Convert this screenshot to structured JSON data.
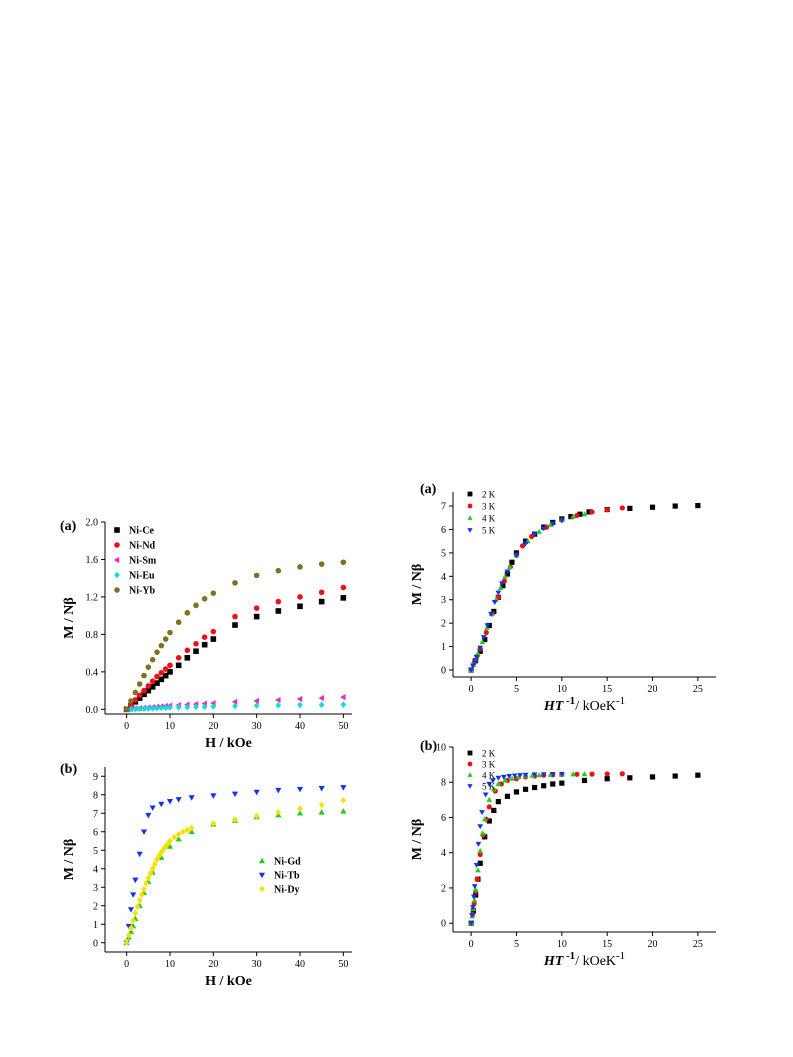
{
  "chart_data": [
    {
      "type": "scatter",
      "panel_label": "(a)",
      "xlabel": "H / kOe",
      "ylabel": "M / Nβ",
      "xlim": [
        -5,
        52
      ],
      "ylim": [
        -0.05,
        2.0
      ],
      "xticks": [
        0,
        10,
        20,
        30,
        40,
        50
      ],
      "yticks": [
        0.0,
        0.4,
        0.8,
        1.2,
        1.6,
        2.0
      ],
      "ytick_labels": [
        "0.0",
        "0.4",
        "0.8",
        "1.2",
        "1.6",
        "2.0"
      ],
      "legend_position": "top-left",
      "series": [
        {
          "name": "Ni-Ce",
          "marker": "square",
          "color": "#000000",
          "x": [
            0,
            1,
            2,
            3,
            4,
            5,
            6,
            7,
            8,
            9,
            10,
            12,
            14,
            16,
            18,
            20,
            25,
            30,
            35,
            40,
            45,
            50
          ],
          "y": [
            0,
            0.04,
            0.08,
            0.12,
            0.16,
            0.2,
            0.24,
            0.28,
            0.32,
            0.36,
            0.4,
            0.47,
            0.55,
            0.62,
            0.69,
            0.75,
            0.9,
            0.99,
            1.05,
            1.1,
            1.15,
            1.19
          ]
        },
        {
          "name": "Ni-Nd",
          "marker": "circle",
          "color": "#ee1111",
          "x": [
            0,
            1,
            2,
            3,
            4,
            5,
            6,
            7,
            8,
            9,
            10,
            12,
            14,
            16,
            18,
            20,
            25,
            30,
            35,
            40,
            45,
            50
          ],
          "y": [
            0,
            0.05,
            0.1,
            0.15,
            0.2,
            0.25,
            0.3,
            0.35,
            0.39,
            0.43,
            0.47,
            0.55,
            0.63,
            0.7,
            0.77,
            0.83,
            0.99,
            1.08,
            1.15,
            1.2,
            1.25,
            1.3
          ]
        },
        {
          "name": "Ni-Sm",
          "marker": "triangle-left",
          "color": "#ee22cc",
          "x": [
            0,
            1,
            2,
            3,
            4,
            5,
            6,
            7,
            8,
            9,
            10,
            12,
            14,
            16,
            18,
            20,
            25,
            30,
            35,
            40,
            45,
            50
          ],
          "y": [
            0,
            0.004,
            0.008,
            0.012,
            0.016,
            0.02,
            0.024,
            0.028,
            0.032,
            0.036,
            0.04,
            0.045,
            0.05,
            0.055,
            0.06,
            0.065,
            0.08,
            0.09,
            0.1,
            0.11,
            0.12,
            0.13
          ]
        },
        {
          "name": "Ni-Eu",
          "marker": "diamond",
          "color": "#11dddd",
          "x": [
            0,
            1,
            2,
            3,
            4,
            5,
            6,
            7,
            8,
            9,
            10,
            12,
            14,
            16,
            18,
            20,
            25,
            30,
            35,
            40,
            45,
            50
          ],
          "y": [
            0,
            0.002,
            0.004,
            0.006,
            0.008,
            0.01,
            0.012,
            0.014,
            0.016,
            0.018,
            0.02,
            0.022,
            0.024,
            0.026,
            0.028,
            0.03,
            0.035,
            0.04,
            0.043,
            0.046,
            0.048,
            0.05
          ]
        },
        {
          "name": "Ni-Yb",
          "marker": "circle",
          "color": "#807020",
          "x": [
            0,
            1,
            2,
            3,
            4,
            5,
            6,
            7,
            8,
            9,
            10,
            12,
            14,
            16,
            18,
            20,
            25,
            30,
            35,
            40,
            45,
            50
          ],
          "y": [
            0,
            0.09,
            0.18,
            0.27,
            0.36,
            0.45,
            0.53,
            0.61,
            0.68,
            0.75,
            0.82,
            0.93,
            1.03,
            1.11,
            1.18,
            1.24,
            1.35,
            1.43,
            1.48,
            1.52,
            1.55,
            1.57
          ]
        }
      ]
    },
    {
      "type": "scatter",
      "panel_label": "(b)",
      "xlabel": "H / kOe",
      "ylabel": "M / Nβ",
      "xlim": [
        -5,
        52
      ],
      "ylim": [
        -0.5,
        9.5
      ],
      "xticks": [
        0,
        10,
        20,
        30,
        40,
        50
      ],
      "yticks": [
        0,
        1,
        2,
        3,
        4,
        5,
        6,
        7,
        8,
        9
      ],
      "ytick_labels": [
        "0",
        "1",
        "2",
        "3",
        "4",
        "5",
        "6",
        "7",
        "8",
        "9"
      ],
      "legend_position": "center-right",
      "series": [
        {
          "name": "Ni-Gd",
          "marker": "triangle-up",
          "color": "#22cc22",
          "x": [
            0,
            0.5,
            1,
            1.5,
            2,
            3,
            4,
            5,
            6,
            8,
            10,
            12,
            15,
            20,
            25,
            30,
            35,
            40,
            45,
            50
          ],
          "y": [
            0,
            0.3,
            0.6,
            0.9,
            1.3,
            2.0,
            2.7,
            3.3,
            3.8,
            4.6,
            5.2,
            5.6,
            6.0,
            6.4,
            6.6,
            6.8,
            6.9,
            7.0,
            7.05,
            7.1
          ]
        },
        {
          "name": "Ni-Tb",
          "marker": "triangle-down",
          "color": "#1133ee",
          "x": [
            0,
            0.5,
            1,
            1.5,
            2,
            3,
            4,
            5,
            6,
            8,
            10,
            12,
            15,
            20,
            25,
            30,
            35,
            40,
            45,
            50
          ],
          "y": [
            0,
            0.9,
            1.8,
            2.6,
            3.4,
            4.8,
            6.0,
            6.9,
            7.3,
            7.5,
            7.65,
            7.75,
            7.85,
            7.95,
            8.05,
            8.15,
            8.25,
            8.3,
            8.35,
            8.4
          ]
        },
        {
          "name": "Ni-Dy",
          "marker": "diamond",
          "color": "#f5e000",
          "x": [
            0,
            0.5,
            1,
            1.5,
            2,
            2.5,
            3,
            3.5,
            4,
            4.5,
            5,
            5.5,
            6,
            6.5,
            7,
            7.5,
            8,
            8.5,
            9,
            9.5,
            10,
            11,
            12,
            13,
            14,
            15,
            20,
            25,
            30,
            35,
            40,
            45,
            50
          ],
          "y": [
            0,
            0.4,
            0.8,
            1.2,
            1.6,
            1.95,
            2.3,
            2.6,
            2.9,
            3.2,
            3.5,
            3.75,
            4.0,
            4.25,
            4.5,
            4.7,
            4.9,
            5.05,
            5.2,
            5.35,
            5.5,
            5.7,
            5.85,
            6.0,
            6.1,
            6.2,
            6.45,
            6.65,
            6.85,
            7.05,
            7.25,
            7.45,
            7.7
          ]
        }
      ]
    },
    {
      "type": "scatter",
      "panel_label": "(a)",
      "xlabel": "HT",
      "xlabel_sup": "-1",
      "xlabel_unit": "/ kOeK",
      "xlabel_unit_sup": "-1",
      "ylabel": "M / Nβ",
      "xlim": [
        -2,
        27
      ],
      "ylim": [
        -0.3,
        7.6
      ],
      "xticks": [
        0,
        5,
        10,
        15,
        20,
        25
      ],
      "yticks": [
        0,
        1,
        2,
        3,
        4,
        5,
        6,
        7
      ],
      "ytick_labels": [
        "0",
        "1",
        "2",
        "3",
        "4",
        "5",
        "6",
        "7"
      ],
      "legend_position": "top-left",
      "series": [
        {
          "name": "2 K",
          "marker": "square",
          "color": "#000000",
          "x": [
            0,
            0.5,
            1,
            1.5,
            2,
            2.5,
            3,
            3.5,
            4,
            4.5,
            5,
            6,
            7,
            8,
            9,
            10,
            11,
            12,
            13,
            15,
            17.5,
            20,
            22.5,
            25
          ],
          "y": [
            0,
            0.4,
            0.8,
            1.3,
            1.9,
            2.5,
            3.1,
            3.6,
            4.1,
            4.6,
            5.0,
            5.5,
            5.8,
            6.1,
            6.3,
            6.45,
            6.55,
            6.65,
            6.75,
            6.85,
            6.9,
            6.95,
            7.0,
            7.02
          ]
        },
        {
          "name": "3 K",
          "marker": "circle",
          "color": "#ee1111",
          "x": [
            0,
            0.33,
            0.67,
            1,
            1.67,
            2.33,
            3,
            3.67,
            4.33,
            5,
            5.67,
            6.67,
            8.33,
            10,
            11.67,
            13.33,
            15,
            16.67
          ],
          "y": [
            0,
            0.3,
            0.6,
            0.9,
            1.6,
            2.4,
            3.1,
            3.8,
            4.4,
            4.9,
            5.3,
            5.7,
            6.1,
            6.4,
            6.6,
            6.75,
            6.85,
            6.92
          ]
        },
        {
          "name": "4 K",
          "marker": "triangle-up",
          "color": "#22cc22",
          "x": [
            0,
            0.25,
            0.5,
            0.75,
            1.25,
            1.75,
            2.25,
            2.75,
            3.25,
            3.75,
            4.25,
            5,
            6.25,
            7.5,
            8.75,
            10,
            11.25,
            12.5
          ],
          "y": [
            0,
            0.22,
            0.45,
            0.7,
            1.2,
            1.8,
            2.4,
            3.0,
            3.5,
            4.0,
            4.4,
            4.9,
            5.5,
            5.9,
            6.2,
            6.4,
            6.55,
            6.65
          ]
        },
        {
          "name": "5 K",
          "marker": "triangle-down",
          "color": "#1133ee",
          "x": [
            0,
            0.2,
            0.4,
            0.6,
            1,
            1.4,
            1.8,
            2.2,
            2.6,
            3,
            3.4,
            4,
            5,
            6,
            7,
            8,
            9,
            10
          ],
          "y": [
            0,
            0.18,
            0.36,
            0.55,
            0.95,
            1.4,
            1.9,
            2.4,
            2.9,
            3.3,
            3.7,
            4.2,
            4.9,
            5.4,
            5.8,
            6.05,
            6.25,
            6.4
          ]
        }
      ]
    },
    {
      "type": "scatter",
      "panel_label": "(b)",
      "xlabel": "HT",
      "xlabel_sup": "-1",
      "xlabel_unit": "/ kOeK",
      "xlabel_unit_sup": "-1",
      "ylabel": "M / Nβ",
      "xlim": [
        -2,
        27
      ],
      "ylim": [
        -0.5,
        10
      ],
      "xticks": [
        0,
        5,
        10,
        15,
        20,
        25
      ],
      "yticks": [
        0,
        2,
        4,
        6,
        8,
        10
      ],
      "ytick_labels": [
        "0",
        "2",
        "4",
        "6",
        "8",
        "10"
      ],
      "legend_position": "top-left",
      "series": [
        {
          "name": "2 K",
          "marker": "square",
          "color": "#000000",
          "x": [
            0,
            0.25,
            0.5,
            0.75,
            1,
            1.5,
            2,
            2.5,
            3,
            4,
            5,
            6,
            7,
            8,
            9,
            10,
            12.5,
            15,
            17.5,
            20,
            22.5,
            25
          ],
          "y": [
            0,
            0.7,
            1.6,
            2.5,
            3.4,
            4.9,
            5.8,
            6.4,
            6.9,
            7.2,
            7.45,
            7.6,
            7.7,
            7.8,
            7.9,
            7.95,
            8.1,
            8.2,
            8.25,
            8.3,
            8.35,
            8.4
          ]
        },
        {
          "name": "3 K",
          "marker": "circle",
          "color": "#ee1111",
          "x": [
            0,
            0.17,
            0.33,
            0.5,
            0.67,
            1,
            1.33,
            1.67,
            2,
            2.67,
            3.33,
            4,
            5,
            6,
            7,
            8,
            9,
            10,
            11.67,
            13.33,
            15,
            16.67
          ],
          "y": [
            0,
            0.5,
            1.1,
            1.8,
            2.5,
            3.9,
            5.0,
            5.9,
            6.6,
            7.5,
            7.9,
            8.1,
            8.2,
            8.3,
            8.35,
            8.4,
            8.42,
            8.44,
            8.45,
            8.46,
            8.47,
            8.48
          ]
        },
        {
          "name": "4 K",
          "marker": "triangle-up",
          "color": "#22cc22",
          "x": [
            0,
            0.12,
            0.25,
            0.37,
            0.5,
            0.75,
            1,
            1.25,
            1.5,
            2,
            2.5,
            3,
            3.75,
            4.5,
            5.25,
            6,
            6.75,
            7.5,
            8.75,
            10,
            11.25,
            12.5
          ],
          "y": [
            0,
            0.4,
            0.8,
            1.3,
            1.9,
            3.0,
            4.1,
            5.1,
            5.9,
            7.0,
            7.6,
            7.9,
            8.1,
            8.2,
            8.3,
            8.35,
            8.38,
            8.4,
            8.42,
            8.44,
            8.45,
            8.46
          ]
        },
        {
          "name": "5 K",
          "marker": "triangle-down",
          "color": "#1133ee",
          "x": [
            0,
            0.1,
            0.2,
            0.3,
            0.4,
            0.6,
            0.8,
            1,
            1.2,
            1.6,
            2,
            2.4,
            3,
            3.6,
            4.2,
            4.8,
            5.4,
            6,
            7,
            8,
            9,
            10
          ],
          "y": [
            0,
            0.45,
            0.9,
            1.5,
            2.1,
            3.3,
            4.5,
            5.5,
            6.3,
            7.3,
            7.9,
            8.1,
            8.25,
            8.3,
            8.35,
            8.38,
            8.4,
            8.42,
            8.44,
            8.45,
            8.46,
            8.47
          ]
        }
      ]
    }
  ]
}
